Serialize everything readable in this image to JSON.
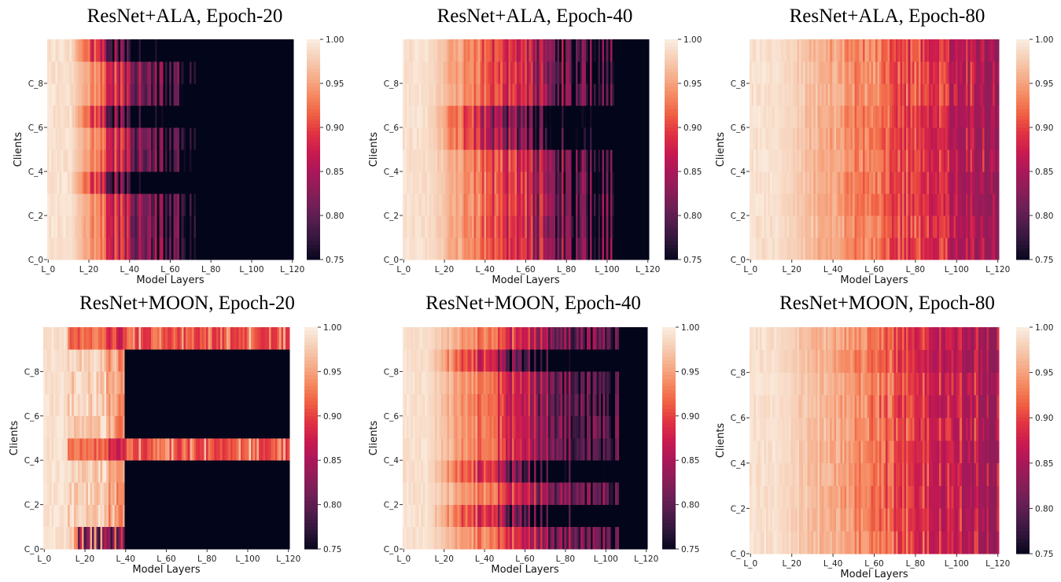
{
  "figure": {
    "colormap": "rocket",
    "colormap_stops": [
      "#03051a",
      "#2b1437",
      "#4d1d4a",
      "#701f57",
      "#8f1d57",
      "#ad1759",
      "#cb1b4f",
      "#e13342",
      "#f06043",
      "#f58860",
      "#f6ad8a",
      "#f6cdb4",
      "#faebdd"
    ],
    "background": "#ffffff"
  },
  "chart_data": [
    {
      "type": "heatmap",
      "title": "ResNet+ALA, Epoch-20",
      "xlabel": "Model Layers",
      "ylabel": "Clients",
      "x_ticks": [
        "L_0",
        "L_20",
        "L_40",
        "L_60",
        "L_80",
        "L_100",
        "L_120"
      ],
      "y_ticks": [
        "C_0",
        "C_2",
        "C_4",
        "C_6",
        "C_8"
      ],
      "colorbar_ticks": [
        "1.00",
        "0.95",
        "0.90",
        "0.85",
        "0.80",
        "0.75"
      ],
      "clim": [
        0.75,
        1.0
      ],
      "n_layers": 121,
      "n_clients": 10,
      "description_profile": {
        "bright_until_layer": 12,
        "falloff": "fast",
        "dark_after_layer": 75,
        "dark_clients": [
          9,
          6,
          3
        ]
      },
      "seed": 11
    },
    {
      "type": "heatmap",
      "title": "ResNet+ALA, Epoch-40",
      "xlabel": "Model Layers",
      "ylabel": "Clients",
      "x_ticks": [
        "L_0",
        "L_20",
        "L_40",
        "L_60",
        "L_80",
        "L_100",
        "L_120"
      ],
      "y_ticks": [
        "C_0",
        "C_2",
        "C_4",
        "C_6",
        "C_8"
      ],
      "colorbar_ticks": [
        "1.00",
        "0.95",
        "0.90",
        "0.85",
        "0.80",
        "0.75"
      ],
      "clim": [
        0.75,
        1.0
      ],
      "n_layers": 121,
      "n_clients": 10,
      "description_profile": {
        "bright_until_layer": 12,
        "falloff": "medium",
        "dark_after_layer": 105,
        "dark_clients": [
          6,
          5
        ]
      },
      "seed": 23
    },
    {
      "type": "heatmap",
      "title": "ResNet+ALA, Epoch-80",
      "xlabel": "Model Layers",
      "ylabel": "Clients",
      "x_ticks": [
        "L_0",
        "L_20",
        "L_40",
        "L_60",
        "L_80",
        "L_100",
        "L_120"
      ],
      "y_ticks": [
        "C_0",
        "C_2",
        "C_4",
        "C_6",
        "C_8"
      ],
      "colorbar_ticks": [
        "1.00",
        "0.95",
        "0.90",
        "0.85",
        "0.80",
        "0.75"
      ],
      "clim": [
        0.75,
        1.0
      ],
      "n_layers": 121,
      "n_clients": 10,
      "description_profile": {
        "bright_until_layer": 120,
        "falloff": "slow",
        "dark_after_layer": 121,
        "dark_clients": []
      },
      "seed": 37
    },
    {
      "type": "heatmap",
      "title": "ResNet+MOON, Epoch-20",
      "xlabel": "Model Layers",
      "ylabel": "Clients",
      "x_ticks": [
        "L_0",
        "L_20",
        "L_40",
        "L_60",
        "L_80",
        "L_100",
        "L_120"
      ],
      "y_ticks": [
        "C_0",
        "C_2",
        "C_4",
        "C_6",
        "C_8"
      ],
      "colorbar_ticks": [
        "1.00",
        "0.95",
        "0.90",
        "0.85",
        "0.80",
        "0.75"
      ],
      "clim": [
        0.75,
        1.0
      ],
      "n_layers": 121,
      "n_clients": 10,
      "description_profile": {
        "bright_until_layer": 14,
        "falloff": "block",
        "dark_after_layer": 40,
        "active_clients": [
          9,
          4
        ]
      },
      "seed": 41
    },
    {
      "type": "heatmap",
      "title": "ResNet+MOON, Epoch-40",
      "xlabel": "Model Layers",
      "ylabel": "Clients",
      "x_ticks": [
        "L_0",
        "L_20",
        "L_40",
        "L_60",
        "L_80",
        "L_100",
        "L_120"
      ],
      "y_ticks": [
        "C_0",
        "C_2",
        "C_4",
        "C_6",
        "C_8"
      ],
      "colorbar_ticks": [
        "1.00",
        "0.95",
        "0.90",
        "0.85",
        "0.80",
        "0.75"
      ],
      "clim": [
        0.75,
        1.0
      ],
      "n_layers": 121,
      "n_clients": 10,
      "description_profile": {
        "bright_until_layer": 35,
        "falloff": "medium",
        "dark_after_layer": 110,
        "dark_clients": [
          8,
          3,
          1
        ]
      },
      "seed": 53
    },
    {
      "type": "heatmap",
      "title": "ResNet+MOON, Epoch-80",
      "xlabel": "Model Layers",
      "ylabel": "Clients",
      "x_ticks": [
        "L_0",
        "L_20",
        "L_40",
        "L_60",
        "L_80",
        "L_100",
        "L_120"
      ],
      "y_ticks": [
        "C_0",
        "C_2",
        "C_4",
        "C_6",
        "C_8"
      ],
      "colorbar_ticks": [
        "1.00",
        "0.95",
        "0.90",
        "0.85",
        "0.80",
        "0.75"
      ],
      "clim": [
        0.75,
        1.0
      ],
      "n_layers": 121,
      "n_clients": 10,
      "description_profile": {
        "bright_until_layer": 70,
        "falloff": "slow",
        "dark_after_layer": 121,
        "dark_clients": []
      },
      "seed": 67
    }
  ]
}
